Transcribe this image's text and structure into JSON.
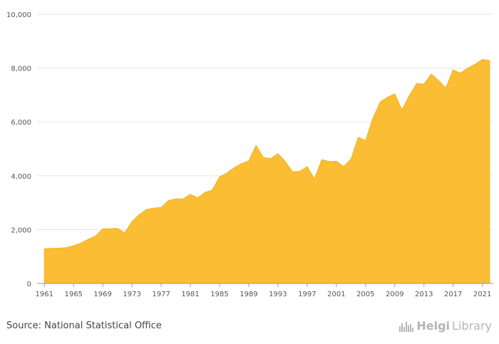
{
  "colors": {
    "area": "#fbbd33",
    "grid": "#e6e6e6",
    "axis": "#999999",
    "text": "#555555"
  },
  "source_label": "Source: National Statistical Office",
  "logo": {
    "part1": "Helgi",
    "part2": "Library",
    "icon": "bar-chart-icon"
  },
  "chart_data": {
    "type": "area",
    "title": "",
    "xlabel": "",
    "ylabel": "",
    "ylim": [
      0,
      10000
    ],
    "yticks": [
      0,
      2000,
      4000,
      6000,
      8000,
      10000
    ],
    "ytick_labels": [
      "0",
      "2,000",
      "4,000",
      "6,000",
      "8,000",
      "10,000"
    ],
    "xlim": [
      1960,
      2022.5
    ],
    "xtick_labels": [
      "1961",
      "1965",
      "1969",
      "1973",
      "1977",
      "1981",
      "1985",
      "1989",
      "1993",
      "1997",
      "2001",
      "2005",
      "2009",
      "2013",
      "2017",
      "2021"
    ],
    "grid": true,
    "legend": "none",
    "x": [
      1961,
      1962,
      1963,
      1964,
      1965,
      1966,
      1967,
      1968,
      1969,
      1970,
      1971,
      1972,
      1973,
      1974,
      1975,
      1976,
      1977,
      1978,
      1979,
      1980,
      1981,
      1982,
      1983,
      1984,
      1985,
      1986,
      1987,
      1988,
      1989,
      1990,
      1991,
      1992,
      1993,
      1994,
      1995,
      1996,
      1997,
      1998,
      1999,
      2000,
      2001,
      2002,
      2003,
      2004,
      2005,
      2006,
      2007,
      2008,
      2009,
      2010,
      2011,
      2012,
      2013,
      2014,
      2015,
      2016,
      2017,
      2018,
      2019,
      2020,
      2021,
      2022
    ],
    "values": [
      1290,
      1300,
      1310,
      1330,
      1400,
      1500,
      1640,
      1760,
      2030,
      2030,
      2050,
      1880,
      2300,
      2560,
      2750,
      2800,
      2820,
      3080,
      3140,
      3140,
      3310,
      3180,
      3380,
      3470,
      3960,
      4100,
      4300,
      4450,
      4550,
      5130,
      4680,
      4640,
      4820,
      4530,
      4150,
      4170,
      4340,
      3890,
      4600,
      4530,
      4540,
      4340,
      4620,
      5430,
      5310,
      6130,
      6740,
      6920,
      7040,
      6450,
      6980,
      7430,
      7400,
      7780,
      7540,
      7260,
      7940,
      7810,
      8000,
      8140,
      8320,
      8280
    ]
  }
}
